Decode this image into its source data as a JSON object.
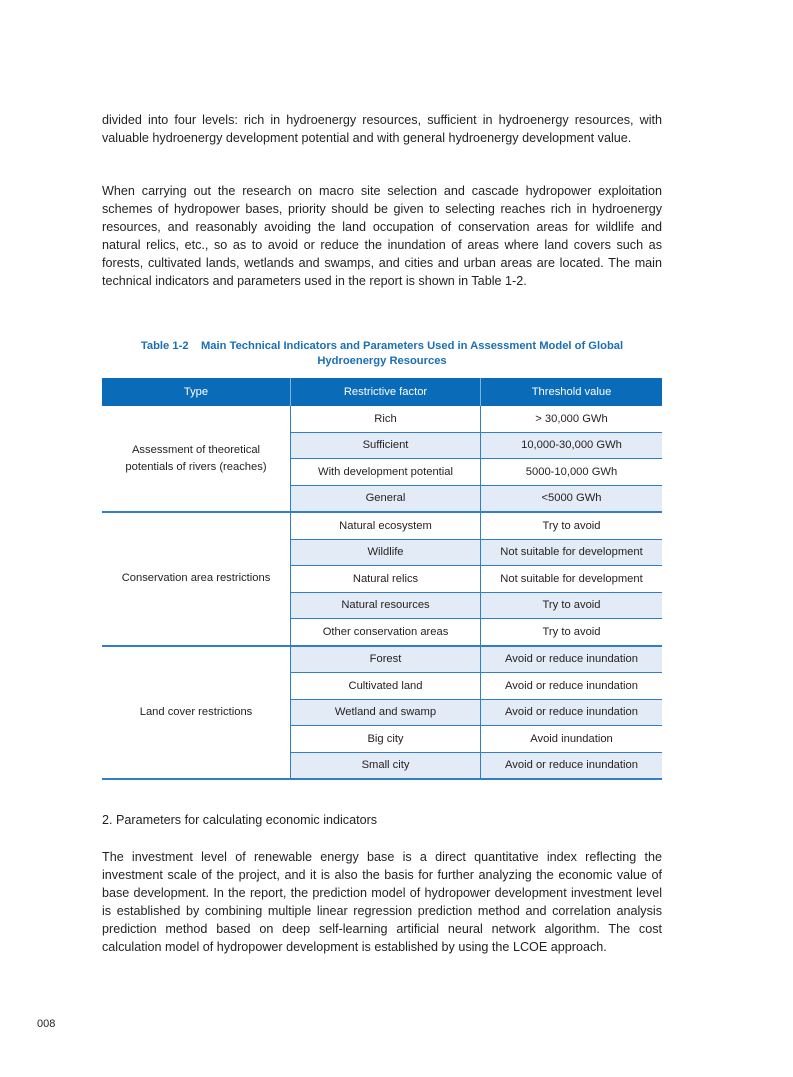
{
  "paragraphs": [
    "divided into four levels: rich in hydroenergy resources, sufficient in hydroenergy resources, with valuable hydroenergy development potential and with general hydroenergy development value.",
    "When carrying out the research on macro site selection and cascade hydropower exploitation schemes of hydropower bases, priority should be given to selecting reaches rich in hydroenergy resources, and reasonably avoiding the land occupation of conservation areas for wildlife and natural relics, etc., so as to avoid or reduce the inundation of areas where land covers such as forests, cultivated lands, wetlands and swamps, and cities and urban areas are located. The main technical indicators and parameters used in the report is shown in Table 1-2."
  ],
  "table": {
    "caption_line1": "Table 1-2    Main Technical Indicators and Parameters Used in Assessment Model of Global",
    "caption_line2": "Hydroenergy Resources",
    "headers": [
      "Type",
      "Restrictive factor",
      "Threshold value"
    ],
    "groups": [
      {
        "type": "Assessment of theoretical potentials of rivers (reaches)",
        "rows": [
          [
            "Rich",
            "> 30,000 GWh"
          ],
          [
            "Sufficient",
            "10,000-30,000 GWh"
          ],
          [
            "With development potential",
            "5000-10,000 GWh"
          ],
          [
            "General",
            "<5000 GWh"
          ]
        ]
      },
      {
        "type": "Conservation area restrictions",
        "rows": [
          [
            "Natural ecosystem",
            "Try to avoid"
          ],
          [
            "Wildlife",
            "Not suitable for development"
          ],
          [
            "Natural relics",
            "Not suitable for development"
          ],
          [
            "Natural resources",
            "Try to avoid"
          ],
          [
            "Other conservation areas",
            "Try to avoid"
          ]
        ]
      },
      {
        "type": "Land cover restrictions",
        "rows": [
          [
            "Forest",
            "Avoid or reduce inundation"
          ],
          [
            "Cultivated land",
            "Avoid or reduce inundation"
          ],
          [
            "Wetland and swamp",
            "Avoid or reduce inundation"
          ],
          [
            "Big city",
            "Avoid inundation"
          ],
          [
            "Small city",
            "Avoid or reduce inundation"
          ]
        ]
      }
    ],
    "colors": {
      "header": "#0a6cb8",
      "shade": "#e3ebf6",
      "caption": "#1a6fb5"
    }
  },
  "section_heading": "2. Parameters for calculating economic indicators",
  "paragraph3": "The investment level of renewable energy base is a direct quantitative index reflecting the investment scale of the project, and it is also the basis for further analyzing the economic value of base development. In the report, the prediction model of hydropower development investment level is established by combining multiple linear regression prediction method and correlation analysis prediction method based on deep self-learning artificial neural network algorithm. The cost calculation model of hydropower development is established by using the LCOE approach.",
  "page_number": "008"
}
